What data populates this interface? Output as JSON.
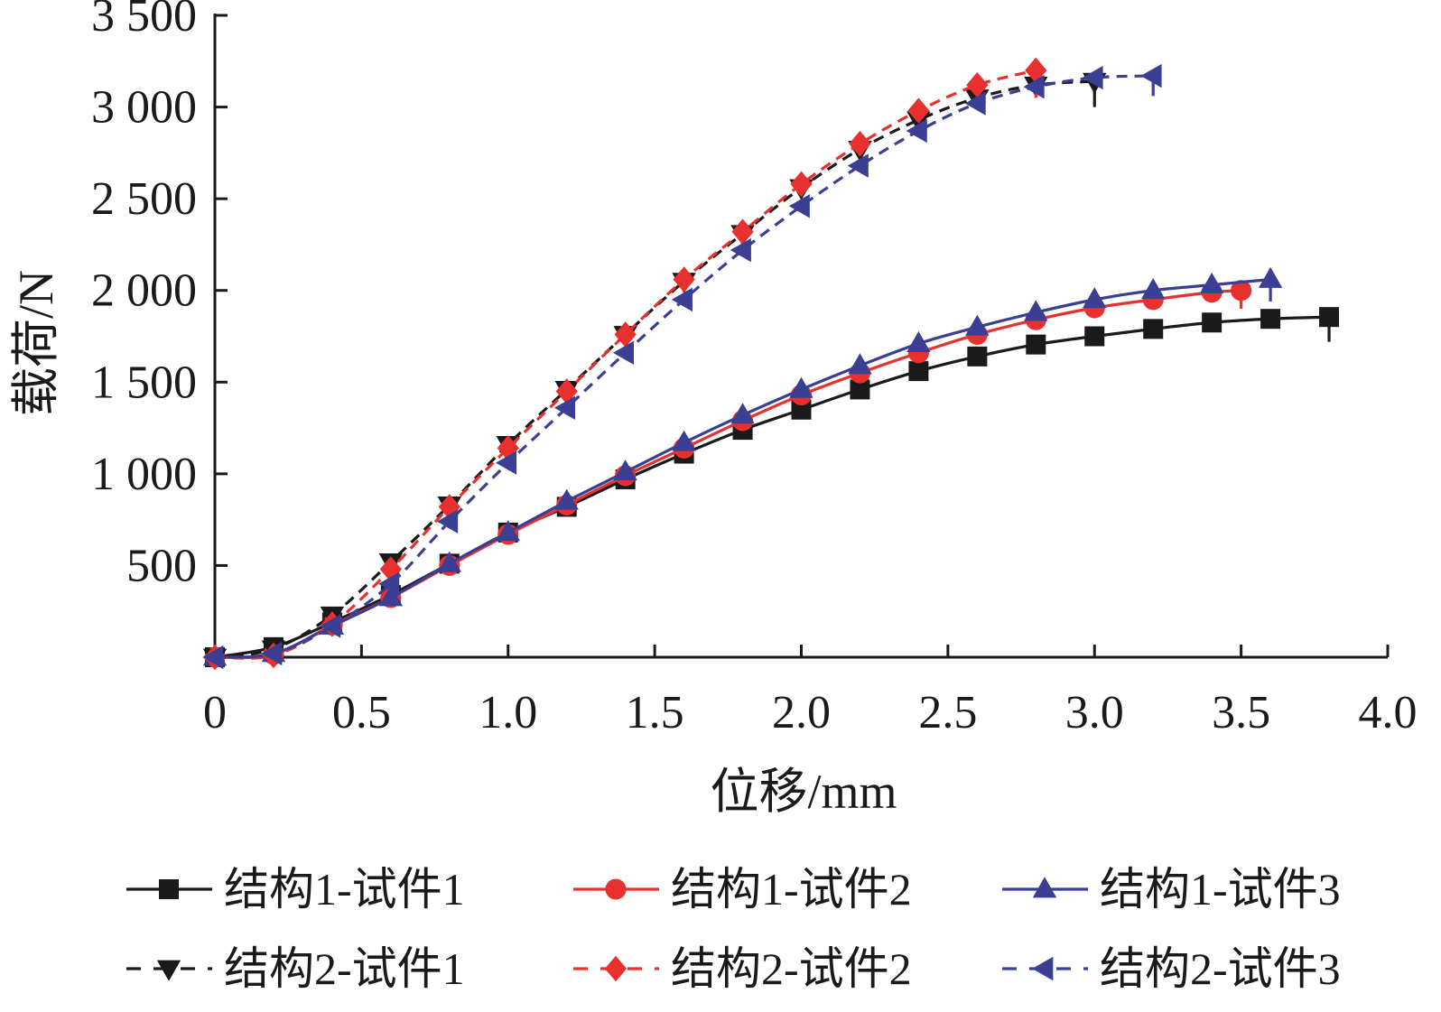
{
  "chart_data": {
    "type": "line",
    "xlabel": "位移/mm",
    "ylabel": "载荷/N",
    "xlim": [
      0,
      4.0
    ],
    "ylim": [
      0,
      3500
    ],
    "x_ticks": [
      "0",
      "0.5",
      "1.0",
      "1.5",
      "2.0",
      "2.5",
      "3.0",
      "3.5",
      "4.0"
    ],
    "y_ticks": [
      "500",
      "1 000",
      "1 500",
      "2 000",
      "2 500",
      "3 000",
      "3 500"
    ],
    "y_tick_values": [
      500,
      1000,
      1500,
      2000,
      2500,
      3000,
      3500
    ],
    "x_tick_values": [
      0,
      0.5,
      1.0,
      1.5,
      2.0,
      2.5,
      3.0,
      3.5,
      4.0
    ],
    "grid": false,
    "legend_position": "bottom",
    "series": [
      {
        "name": "结构1-试件1",
        "color": "#1a1a1a",
        "dash": "solid",
        "marker": "square",
        "x": [
          0,
          0.2,
          0.4,
          0.6,
          0.8,
          1.0,
          1.2,
          1.4,
          1.6,
          1.8,
          2.0,
          2.2,
          2.4,
          2.6,
          2.8,
          3.0,
          3.2,
          3.4,
          3.6,
          3.8
        ],
        "y": [
          0,
          55,
          190,
          340,
          510,
          680,
          820,
          970,
          1110,
          1240,
          1350,
          1460,
          1560,
          1640,
          1705,
          1750,
          1790,
          1825,
          1845,
          1855
        ],
        "end_drop": 1720
      },
      {
        "name": "结构1-试件2",
        "color": "#e8312f",
        "dash": "solid",
        "marker": "circle",
        "x": [
          0,
          0.2,
          0.4,
          0.6,
          0.8,
          1.0,
          1.2,
          1.4,
          1.6,
          1.8,
          2.0,
          2.2,
          2.4,
          2.6,
          2.8,
          3.0,
          3.2,
          3.4,
          3.5
        ],
        "y": [
          0,
          15,
          175,
          325,
          500,
          670,
          830,
          990,
          1140,
          1290,
          1430,
          1550,
          1660,
          1760,
          1840,
          1905,
          1950,
          1990,
          2000
        ],
        "end_drop": 1900
      },
      {
        "name": "结构1-试件3",
        "color": "#3a3f94",
        "dash": "solid",
        "marker": "triangle-up",
        "x": [
          0,
          0.2,
          0.4,
          0.6,
          0.8,
          1.0,
          1.2,
          1.4,
          1.6,
          1.8,
          2.0,
          2.2,
          2.4,
          2.6,
          2.8,
          3.0,
          3.2,
          3.4,
          3.6
        ],
        "y": [
          0,
          20,
          170,
          325,
          510,
          680,
          850,
          1010,
          1170,
          1320,
          1460,
          1590,
          1710,
          1800,
          1880,
          1950,
          2000,
          2030,
          2060
        ],
        "end_drop": 1940
      },
      {
        "name": "结构2-试件1",
        "color": "#1a1a1a",
        "dash": "dashed",
        "marker": "triangle-down",
        "x": [
          0,
          0.2,
          0.4,
          0.6,
          0.8,
          1.0,
          1.2,
          1.4,
          1.6,
          1.8,
          2.0,
          2.2,
          2.4,
          2.6,
          2.8,
          3.0
        ],
        "y": [
          0,
          45,
          230,
          520,
          830,
          1160,
          1460,
          1760,
          2050,
          2310,
          2560,
          2770,
          2930,
          3050,
          3120,
          3140
        ],
        "end_drop": 3000
      },
      {
        "name": "结构2-试件2",
        "color": "#e8312f",
        "dash": "dashed",
        "marker": "diamond",
        "x": [
          0,
          0.2,
          0.4,
          0.6,
          0.8,
          1.0,
          1.2,
          1.4,
          1.6,
          1.8,
          2.0,
          2.2,
          2.4,
          2.6,
          2.8
        ],
        "y": [
          0,
          10,
          180,
          480,
          820,
          1140,
          1450,
          1760,
          2060,
          2320,
          2580,
          2800,
          2980,
          3120,
          3200
        ],
        "end_drop": 3050
      },
      {
        "name": "结构2-试件3",
        "color": "#3a3f94",
        "dash": "dashed",
        "marker": "triangle-left",
        "x": [
          0,
          0.2,
          0.4,
          0.6,
          0.8,
          1.0,
          1.2,
          1.4,
          1.6,
          1.8,
          2.0,
          2.2,
          2.4,
          2.6,
          2.8,
          3.0,
          3.2
        ],
        "y": [
          0,
          20,
          170,
          400,
          740,
          1060,
          1360,
          1660,
          1950,
          2220,
          2460,
          2680,
          2870,
          3020,
          3110,
          3160,
          3170
        ],
        "end_drop": 3060
      }
    ]
  }
}
